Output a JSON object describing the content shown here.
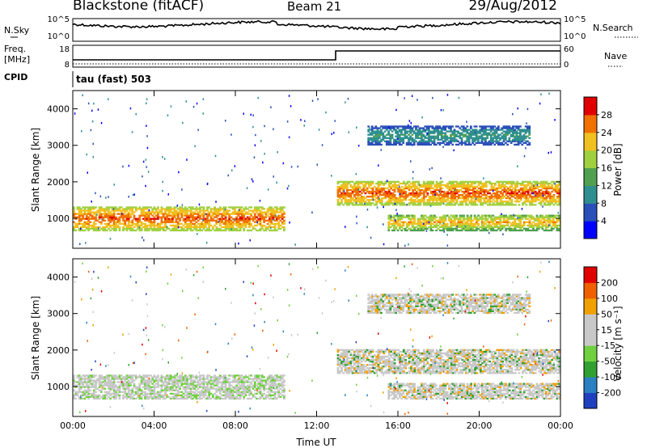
{
  "header": {
    "station": "Blackstone (fitACF)",
    "beam": "Beam 21",
    "date": "29/Aug/2012"
  },
  "top_panels": {
    "nsky_label": "N.Sky",
    "nsky_ticks": [
      "10^5",
      "10^0"
    ],
    "nsearch_label": "N.Search",
    "nsearch_ticks": [
      "10^5",
      "10^0"
    ],
    "freq_label_1": "Freq.",
    "freq_label_2": "[MHz]",
    "freq_ticks": [
      "18",
      "8"
    ],
    "nave_label": "Nave",
    "nave_ticks": [
      "60",
      "0"
    ],
    "cpid_label": "CPID",
    "cpid_value": "tau (fast) 503"
  },
  "chart_data": [
    {
      "type": "heatmap",
      "name": "power",
      "ylabel": "Slant Range [km]",
      "yticks": [
        "1000",
        "2000",
        "3000",
        "4000"
      ],
      "ylim": [
        180,
        4500
      ],
      "colorbar_label": "Power [dB]",
      "colorbar_ticks": [
        "4",
        "8",
        "12",
        "16",
        "20",
        "24",
        "28"
      ],
      "colorbar_colors": [
        "#0000ff",
        "#2a4fb8",
        "#2f8f8f",
        "#50a050",
        "#a0d040",
        "#f0c020",
        "#f07000",
        "#e00000"
      ],
      "echo_regions": [
        {
          "t0": 0.0,
          "t1": 10.4,
          "r0": 650,
          "r1": 1300,
          "level": "high"
        },
        {
          "t0": 13.0,
          "t1": 24.0,
          "r0": 1350,
          "r1": 2000,
          "level": "high"
        },
        {
          "t0": 15.5,
          "t1": 24.0,
          "r0": 650,
          "r1": 1100,
          "level": "medium"
        },
        {
          "t0": 14.5,
          "t1": 22.5,
          "r0": 3000,
          "r1": 3500,
          "level": "low"
        }
      ]
    },
    {
      "type": "heatmap",
      "name": "velocity",
      "xlabel": "Time UT",
      "ylabel": "Slant Range [km]",
      "xticks": [
        "00:00",
        "04:00",
        "08:00",
        "12:00",
        "16:00",
        "20:00",
        "00:00"
      ],
      "yticks": [
        "1000",
        "2000",
        "3000",
        "4000"
      ],
      "ylim": [
        180,
        4500
      ],
      "colorbar_label": "Velocity [m s⁻¹]",
      "colorbar_ticks": [
        "200",
        "100",
        "50",
        "15",
        "-15",
        "-50",
        "-100",
        "-200"
      ],
      "colorbar_colors": [
        "#2040c0",
        "#2a80c0",
        "#30a030",
        "#70d040",
        "#c8c8c8",
        "#c8c8c8",
        "#f0a000",
        "#f06000",
        "#e00000"
      ]
    }
  ]
}
